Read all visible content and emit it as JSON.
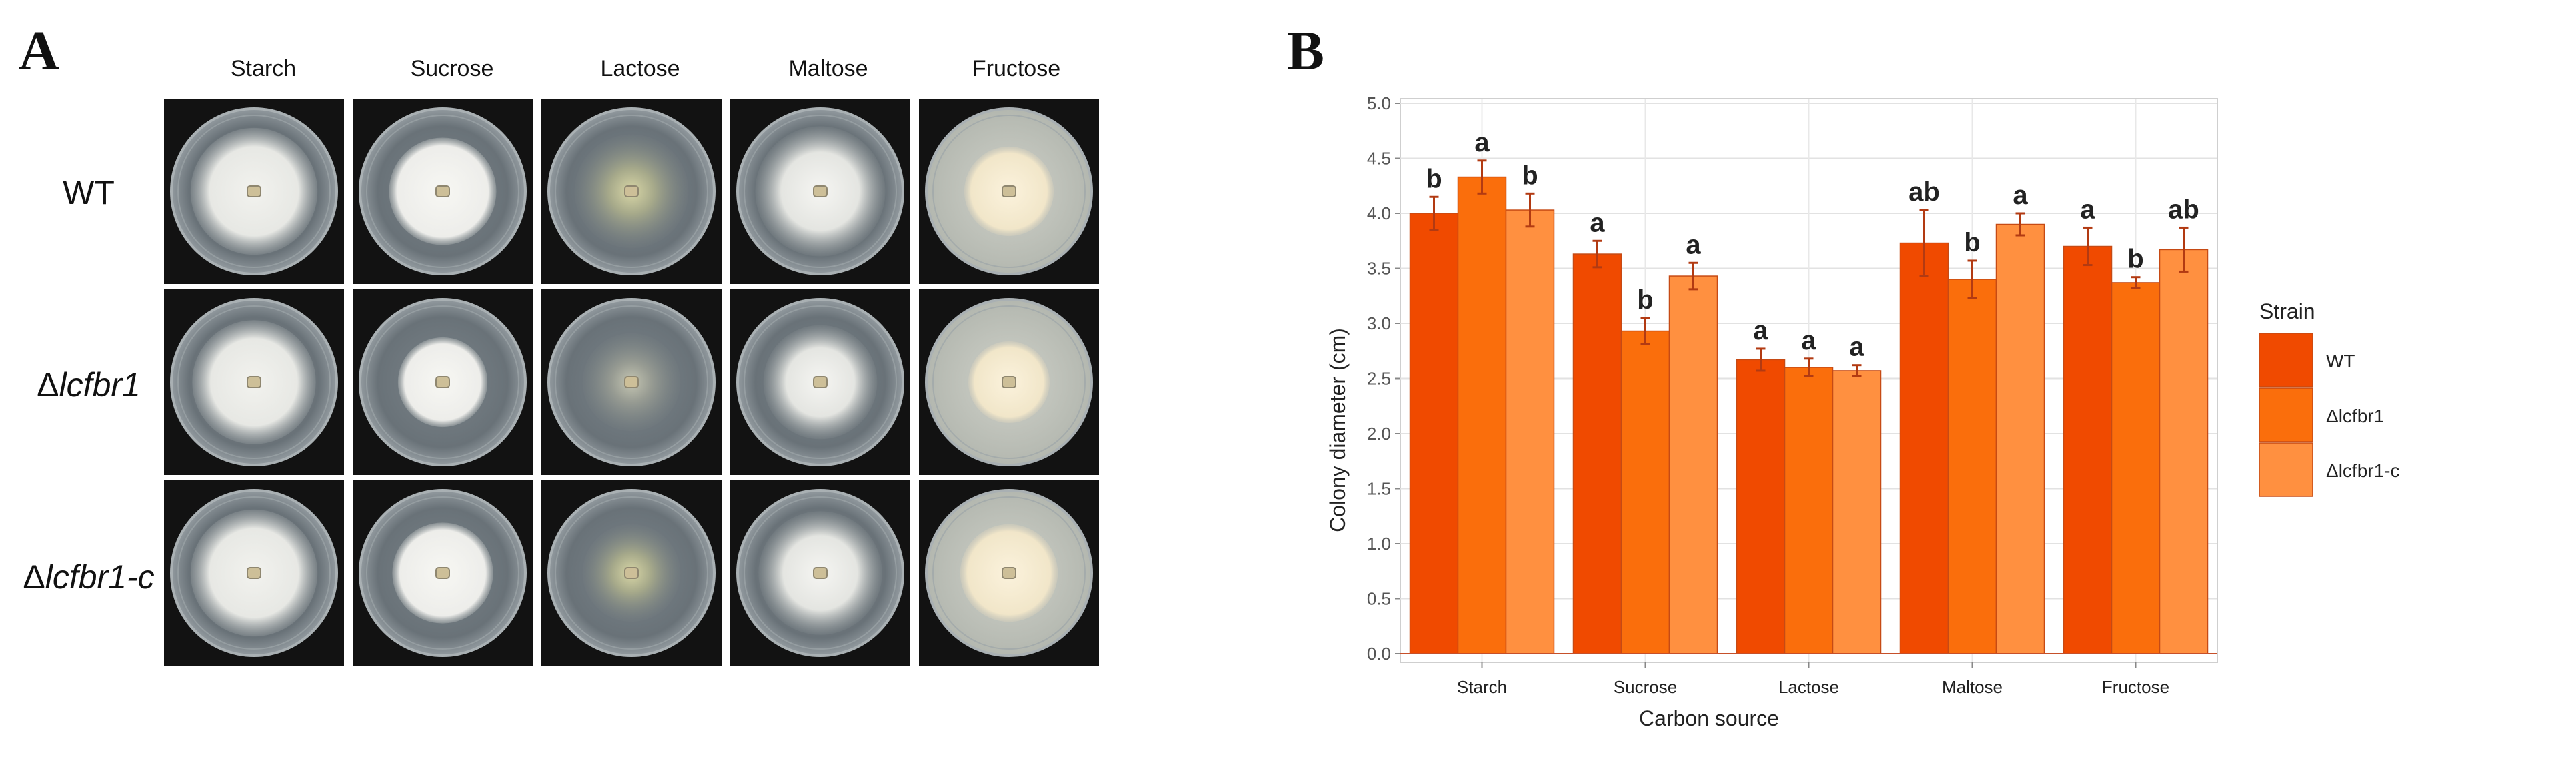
{
  "panel_a": {
    "letter": "A",
    "columns": [
      "Starch",
      "Sucrose",
      "Lactose",
      "Maltose",
      "Fructose"
    ],
    "rows": [
      {
        "prefix": "",
        "name": "WT"
      },
      {
        "prefix": "Δ",
        "name": "lcfbr1"
      },
      {
        "prefix": "Δ",
        "name": "lcfbr1-c"
      }
    ],
    "plates": [
      [
        {
          "colony": "white-fluffy",
          "size": 0.78
        },
        {
          "colony": "white-dense",
          "size": 0.66
        },
        {
          "colony": "sparse-yellow",
          "size": 0.7
        },
        {
          "colony": "white-radial",
          "size": 0.8
        },
        {
          "colony": "cream-compact",
          "size": 0.55
        }
      ],
      [
        {
          "colony": "white-fluffy",
          "size": 0.76
        },
        {
          "colony": "white-dense",
          "size": 0.55
        },
        {
          "colony": "sparse-grey",
          "size": 0.6
        },
        {
          "colony": "white-radial",
          "size": 0.7
        },
        {
          "colony": "cream-compact",
          "size": 0.5
        }
      ],
      [
        {
          "colony": "white-fluffy",
          "size": 0.78
        },
        {
          "colony": "white-dense",
          "size": 0.62
        },
        {
          "colony": "sparse-yellow",
          "size": 0.6
        },
        {
          "colony": "white-radial",
          "size": 0.76
        },
        {
          "colony": "cream-compact",
          "size": 0.6
        }
      ]
    ]
  },
  "panel_b": {
    "letter": "B"
  },
  "colors": {
    "wt": "#F04A00",
    "ko": "#FA6E0C",
    "comp": "#FF9040",
    "error": "#B23A12"
  },
  "chart_data": {
    "type": "bar",
    "categories": [
      "Starch",
      "Sucrose",
      "Lactose",
      "Maltose",
      "Fructose"
    ],
    "series": [
      {
        "name": "WT",
        "values": [
          4.0,
          3.63,
          2.67,
          3.73,
          3.7
        ],
        "errors": [
          0.15,
          0.12,
          0.1,
          0.3,
          0.17
        ],
        "labels": [
          "b",
          "a",
          "a",
          "ab",
          "a"
        ]
      },
      {
        "name": "Δlcfbr1",
        "values": [
          4.33,
          2.93,
          2.6,
          3.4,
          3.37
        ],
        "errors": [
          0.15,
          0.12,
          0.08,
          0.17,
          0.05
        ],
        "labels": [
          "a",
          "b",
          "a",
          "b",
          "b"
        ]
      },
      {
        "name": "Δlcfbr1-c",
        "values": [
          4.03,
          3.43,
          2.57,
          3.9,
          3.67
        ],
        "errors": [
          0.15,
          0.12,
          0.05,
          0.1,
          0.2
        ],
        "labels": [
          "b",
          "a",
          "a",
          "a",
          "ab"
        ]
      }
    ],
    "xlabel": "Carbon source",
    "ylabel": "Colony diameter (cm)",
    "ylim": [
      0,
      5.0
    ],
    "yticks": [
      "0.0",
      "0.5",
      "1.0",
      "1.5",
      "2.0",
      "2.5",
      "3.0",
      "3.5",
      "4.0",
      "4.5",
      "5.0"
    ],
    "grid": true,
    "legend": {
      "title": "Strain",
      "position": "right"
    }
  }
}
